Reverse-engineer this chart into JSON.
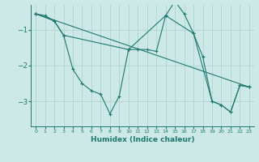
{
  "xlabel": "Humidex (Indice chaleur)",
  "background_color": "#cce9e7",
  "grid_color": "#afd4d0",
  "line_color": "#1e7870",
  "x_ticks": [
    0,
    1,
    2,
    3,
    4,
    5,
    6,
    7,
    8,
    9,
    10,
    11,
    12,
    13,
    14,
    15,
    16,
    17,
    18,
    19,
    20,
    21,
    22,
    23
  ],
  "y_ticks": [
    -1,
    -2,
    -3
  ],
  "ylim": [
    -3.7,
    -0.3
  ],
  "xlim": [
    -0.5,
    23.5
  ],
  "series1": {
    "x": [
      0,
      1,
      2,
      3,
      4,
      5,
      6,
      7,
      8,
      9,
      10,
      11,
      12,
      13,
      14,
      15,
      16,
      17,
      18,
      19,
      20,
      21,
      22,
      23
    ],
    "y": [
      -0.55,
      -0.6,
      -0.75,
      -1.15,
      -2.1,
      -2.5,
      -2.7,
      -2.8,
      -3.35,
      -2.85,
      -1.55,
      -1.55,
      -1.55,
      -1.6,
      -0.6,
      -0.2,
      -0.55,
      -1.1,
      -1.75,
      -3.0,
      -3.1,
      -3.3,
      -2.55,
      -2.6
    ]
  },
  "series2": {
    "x": [
      0,
      2,
      3,
      10,
      14,
      17,
      19,
      20,
      21,
      22,
      23
    ],
    "y": [
      -0.55,
      -0.75,
      -1.15,
      -1.55,
      -0.6,
      -1.1,
      -3.0,
      -3.1,
      -3.3,
      -2.55,
      -2.6
    ]
  },
  "series3": {
    "x": [
      0,
      23
    ],
    "y": [
      -0.55,
      -2.6
    ]
  }
}
